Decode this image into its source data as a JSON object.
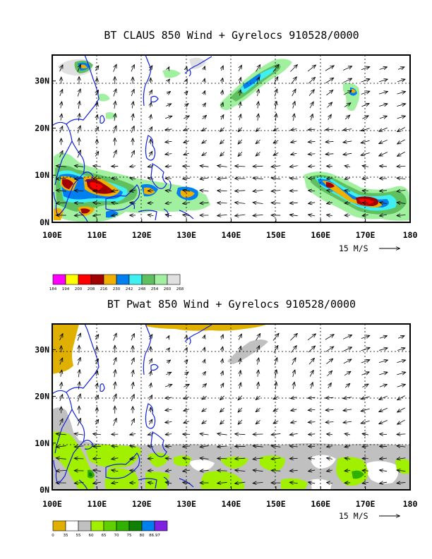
{
  "panels": [
    {
      "id": "claus",
      "title": "BT CLAUS 850 Wind + Gyrelocs 910528/0000",
      "x_ticks": [
        "100E",
        "110E",
        "120E",
        "130E",
        "140E",
        "150E",
        "160E",
        "170E",
        "180"
      ],
      "y_ticks": [
        "0N",
        "10N",
        "20N",
        "30N"
      ],
      "x_range": [
        100,
        180
      ],
      "y_range": [
        0,
        35.5
      ],
      "grid": true,
      "wind_reference": "15 M/S",
      "colorbar": {
        "colors": [
          "#ff00ff",
          "#ffff00",
          "#ff0000",
          "#a00000",
          "#f0b000",
          "#0080f0",
          "#40f0f0",
          "#60c060",
          "#a0f0a0",
          "#e0e0e0"
        ],
        "labels": [
          "184",
          "194",
          "200",
          "208",
          "216",
          "230",
          "242",
          "248",
          "254",
          "260",
          "268"
        ]
      }
    },
    {
      "id": "pwat",
      "title": "BT Pwat 850 Wind + Gyrelocs 910528/0000",
      "x_ticks": [
        "100E",
        "110E",
        "120E",
        "130E",
        "140E",
        "150E",
        "160E",
        "170E",
        "180"
      ],
      "y_ticks": [
        "0N",
        "10N",
        "20N",
        "30N"
      ],
      "x_range": [
        100,
        180
      ],
      "y_range": [
        0,
        35.5
      ],
      "grid": true,
      "wind_reference": "15 M/S",
      "colorbar": {
        "colors": [
          "#e0b000",
          "#ffffff",
          "#c0c0c0",
          "#a0f000",
          "#60d000",
          "#30b000",
          "#108000",
          "#0080f0",
          "#8020e0"
        ],
        "labels": [
          "0",
          "35",
          "55",
          "60",
          "65",
          "70",
          "75",
          "80",
          "86.97"
        ]
      }
    }
  ],
  "colors": {
    "coastline": "#1020e0",
    "frame": "#000000"
  },
  "icons": [
    "wind-reference-arrow-icon"
  ]
}
